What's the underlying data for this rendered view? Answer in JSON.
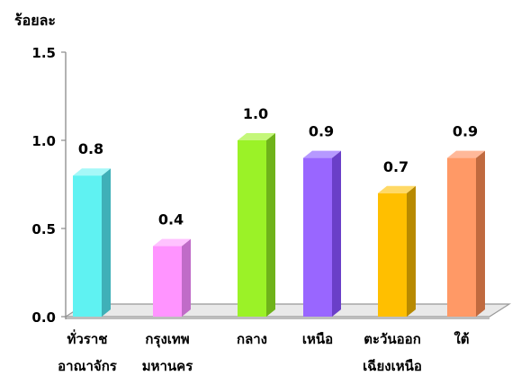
{
  "chart_data": {
    "type": "bar",
    "ylabel": "ร้อยละ",
    "ylim": [
      0,
      1.5
    ],
    "yticks": [
      "0.0",
      "0.5",
      "1.0",
      "1.5"
    ],
    "categories": [
      [
        "ทั่วราช",
        "อาณาจักร"
      ],
      [
        "กรุงเทพ",
        "มหานคร"
      ],
      [
        "กลาง"
      ],
      [
        "เหนือ"
      ],
      [
        "ตะวันออก",
        "เฉียงเหนือ"
      ],
      [
        "ใต้"
      ]
    ],
    "values": [
      0.8,
      0.4,
      1.0,
      0.9,
      0.7,
      0.9
    ],
    "value_labels": [
      "0.8",
      "0.4",
      "1.0",
      "0.9",
      "0.7",
      "0.9"
    ],
    "colors": [
      "#5ff2f2",
      "#ff94ff",
      "#9bf227",
      "#9966ff",
      "#ffbf00",
      "#ff9966"
    ],
    "side_colors": [
      "#3fb0b8",
      "#c06cc8",
      "#6fb31a",
      "#6a3fc8",
      "#b88a00",
      "#c06a3f"
    ],
    "top_colors": [
      "#a6f8f8",
      "#ffc2ff",
      "#c4f77a",
      "#b699ff",
      "#ffd966",
      "#ffb899"
    ],
    "grid": false,
    "legend": "none"
  }
}
